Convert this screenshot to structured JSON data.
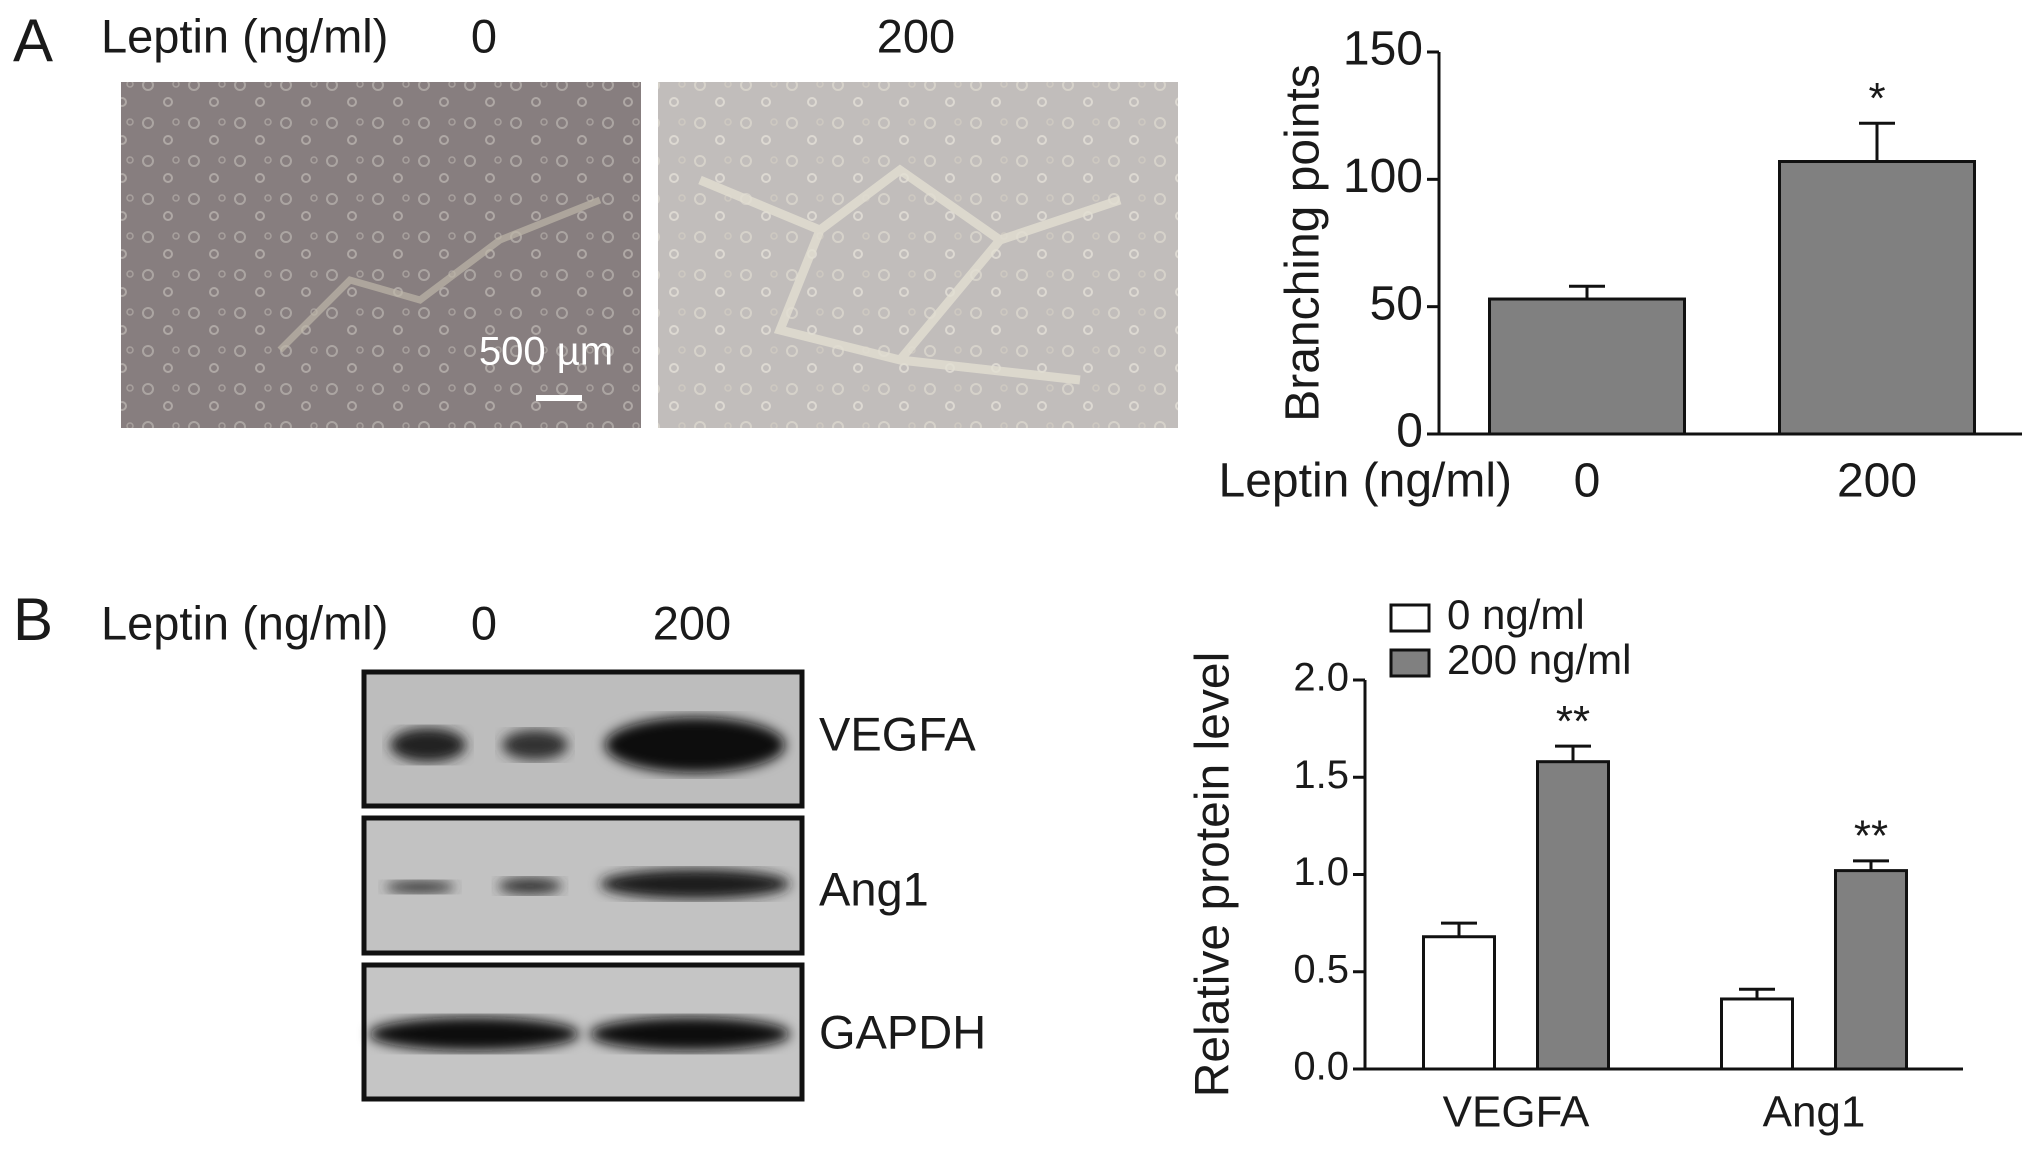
{
  "panel_a": {
    "label": "A",
    "condition_label": "Leptin (ng/ml)",
    "doses": [
      "0",
      "200"
    ],
    "scale_bar": "500 µm"
  },
  "panel_b": {
    "label": "B",
    "condition_label": "Leptin (ng/ml)",
    "doses": [
      "0",
      "200"
    ],
    "blots": [
      "VEGFA",
      "Ang1",
      "GAPDH"
    ]
  },
  "chart_data": [
    {
      "type": "bar",
      "y_label": "Branching points",
      "x_label": "Leptin (ng/ml)",
      "categories": [
        "0",
        "200"
      ],
      "values": [
        53,
        107
      ],
      "errors": [
        5,
        15
      ],
      "annotations": [
        null,
        "*"
      ],
      "color": "#808080",
      "ylim": [
        0,
        150
      ],
      "yticks": [
        0,
        50,
        100,
        150
      ]
    },
    {
      "type": "bar",
      "y_label": "Relative protein level",
      "categories": [
        "VEGFA",
        "Ang1"
      ],
      "series": [
        {
          "name": "0 ng/ml",
          "color": "#ffffff",
          "values": [
            0.68,
            0.36
          ],
          "errors": [
            0.07,
            0.05
          ]
        },
        {
          "name": "200 ng/ml",
          "color": "#808080",
          "values": [
            1.58,
            1.02
          ],
          "errors": [
            0.08,
            0.05
          ],
          "annotations": [
            "**",
            "**"
          ]
        }
      ],
      "legend": "top-left",
      "ylim": [
        0,
        2
      ],
      "yticks": [
        {
          "value": 0,
          "label": "0.0"
        },
        0.5,
        {
          "value": 1,
          "label": "1.0"
        },
        1.5,
        {
          "value": 2,
          "label": "2.0"
        }
      ]
    }
  ]
}
